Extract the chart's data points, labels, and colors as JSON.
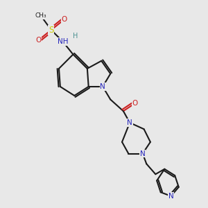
{
  "background_color": "#e8e8e8",
  "bond_color": "#1a1a1a",
  "atom_colors": {
    "N": "#2222bb",
    "O": "#cc2020",
    "S": "#cccc00",
    "C": "#1a1a1a",
    "H": "#4a9090"
  },
  "figsize": [
    3.0,
    3.0
  ],
  "dpi": 100,
  "xlim": [
    0.15,
    2.85
  ],
  "ylim": [
    -0.35,
    2.85
  ]
}
